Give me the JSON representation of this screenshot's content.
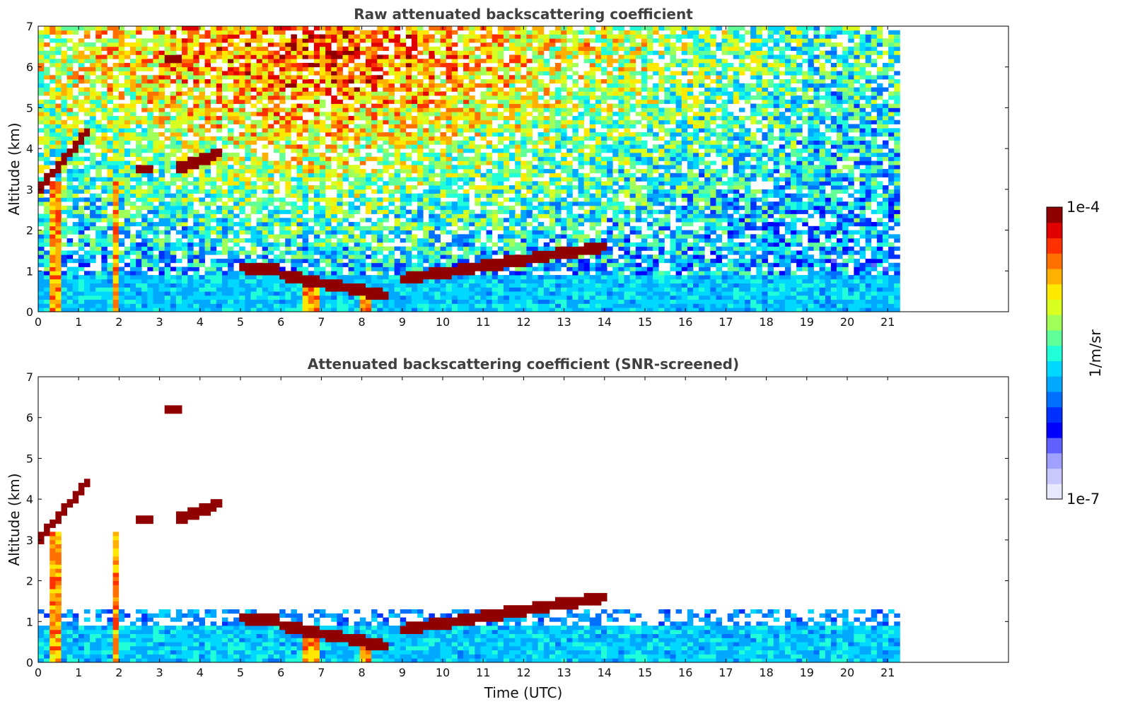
{
  "chart_data": [
    {
      "type": "heatmap",
      "title": "Raw attenuated backscattering coefficient",
      "xlabel": "",
      "ylabel": "Altitude (km)",
      "xlim": [
        0,
        24
      ],
      "ylim": [
        0,
        7
      ],
      "x_ticks": [
        "0",
        "1",
        "2",
        "3",
        "4",
        "5",
        "6",
        "7",
        "8",
        "9",
        "10",
        "11",
        "12",
        "13",
        "14",
        "15",
        "16",
        "17",
        "18",
        "19",
        "20",
        "21"
      ],
      "y_ticks": [
        "0",
        "1",
        "2",
        "3",
        "4",
        "5",
        "6",
        "7"
      ],
      "data_extent_hours": [
        0,
        21.3
      ],
      "screened": false,
      "features": {
        "boundary_layer_top_km": 0.9,
        "clouds": [
          {
            "t_start": 0.0,
            "t_end": 1.3,
            "alt_start": 3.0,
            "alt_end": 4.5
          },
          {
            "t_start": 2.4,
            "t_end": 2.9,
            "alt_start": 3.5,
            "alt_end": 3.5
          },
          {
            "t_start": 3.4,
            "t_end": 4.5,
            "alt_start": 3.5,
            "alt_end": 3.9
          },
          {
            "t_start": 3.1,
            "t_end": 3.5,
            "alt_start": 6.2,
            "alt_end": 6.2
          },
          {
            "t_start": 5.0,
            "t_end": 6.0,
            "alt_start": 1.1,
            "alt_end": 1.0
          },
          {
            "t_start": 6.0,
            "t_end": 8.6,
            "alt_start": 0.9,
            "alt_end": 0.4
          },
          {
            "t_start": 9.0,
            "t_end": 14.0,
            "alt_start": 0.8,
            "alt_end": 1.6
          }
        ],
        "precipitation_shafts": [
          [
            0.3,
            0.5
          ],
          [
            1.8,
            2.0
          ],
          [
            6.6,
            7.0
          ],
          [
            7.9,
            8.2
          ]
        ]
      }
    },
    {
      "type": "heatmap",
      "title": "Attenuated backscattering coefficient (SNR-screened)",
      "xlabel": "Time (UTC)",
      "ylabel": "Altitude (km)",
      "xlim": [
        0,
        24
      ],
      "ylim": [
        0,
        7
      ],
      "x_ticks": [
        "0",
        "1",
        "2",
        "3",
        "4",
        "5",
        "6",
        "7",
        "8",
        "9",
        "10",
        "11",
        "12",
        "13",
        "14",
        "15",
        "16",
        "17",
        "18",
        "19",
        "20",
        "21"
      ],
      "y_ticks": [
        "0",
        "1",
        "2",
        "3",
        "4",
        "5",
        "6",
        "7"
      ],
      "data_extent_hours": [
        0,
        21.3
      ],
      "screened": true
    }
  ],
  "colorbar": {
    "label": "1/m/sr",
    "max_label": "1e-4",
    "min_label": "1e-7",
    "scale": "log",
    "range": [
      1e-07,
      0.0001
    ],
    "colors": [
      "#e8e8ff",
      "#c8c8ff",
      "#a0a0ff",
      "#6060ff",
      "#0000ff",
      "#0030ff",
      "#0070ff",
      "#00a8ff",
      "#00d8ff",
      "#20ffd8",
      "#60ff98",
      "#a0ff58",
      "#d8ff20",
      "#ffe800",
      "#ffb000",
      "#ff7000",
      "#ff3000",
      "#e00000",
      "#900000"
    ]
  }
}
